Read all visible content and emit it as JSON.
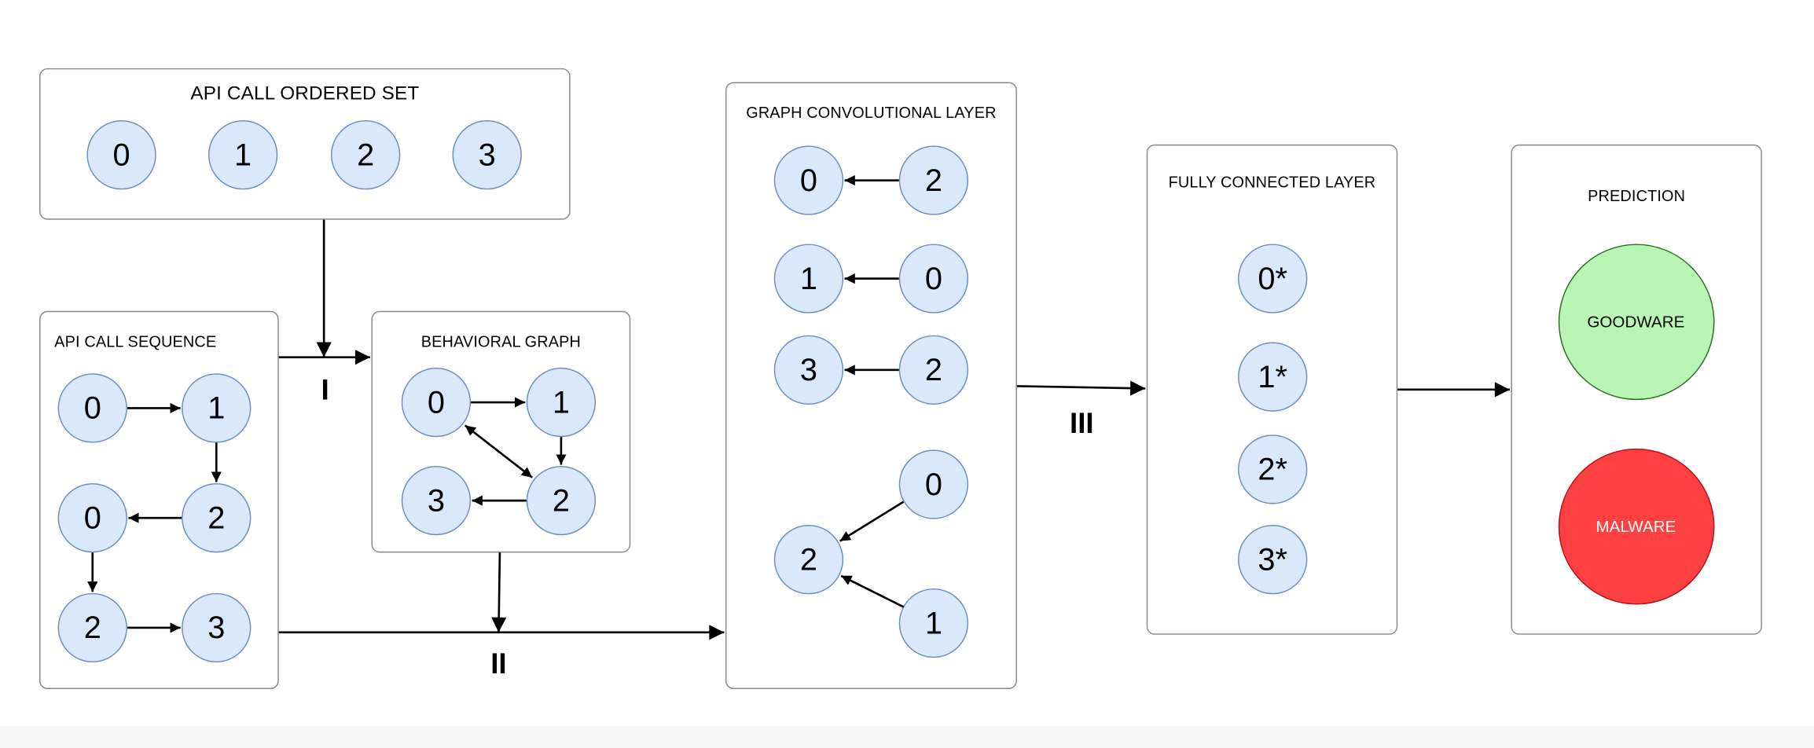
{
  "panels": {
    "ordered_set": {
      "title": "API CALL ORDERED SET",
      "nodes": [
        "0",
        "1",
        "2",
        "3"
      ]
    },
    "sequence": {
      "title": "API CALL SEQUENCE",
      "nodes": [
        "0",
        "1",
        "0",
        "2",
        "2",
        "3"
      ]
    },
    "behavioral": {
      "title": "BEHAVIORAL GRAPH",
      "nodes": [
        "0",
        "1",
        "3",
        "2"
      ]
    },
    "gcn": {
      "title": "GRAPH CONVOLUTIONAL LAYER",
      "nodes": [
        "0",
        "2",
        "1",
        "0",
        "3",
        "2",
        "0",
        "2",
        "1"
      ]
    },
    "fc": {
      "title": "FULLY CONNECTED LAYER",
      "nodes": [
        "0*",
        "1*",
        "2*",
        "3*"
      ]
    },
    "prediction": {
      "title": "PREDICTION",
      "goodware": "GOODWARE",
      "malware": "MALWARE"
    }
  },
  "steps": {
    "one": "I",
    "two": "II",
    "three": "III"
  },
  "colors": {
    "node_fill": "#dae8fc",
    "node_stroke": "#6c8ebf",
    "goodware_fill": "#b9f5b4",
    "malware_fill": "#ff4040",
    "panel_border": "#888888"
  }
}
